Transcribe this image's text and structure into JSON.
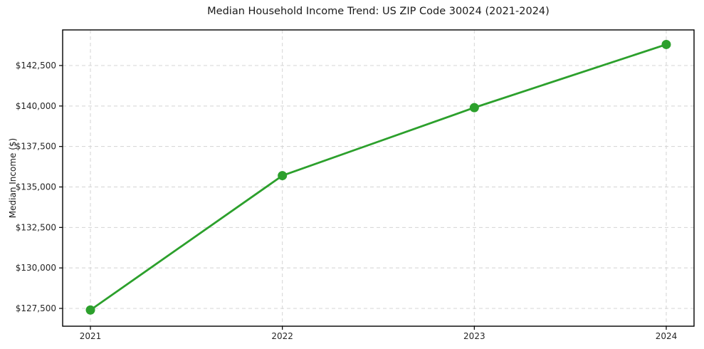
{
  "chart_data": {
    "type": "line",
    "title": "Median Household Income Trend: US ZIP Code 30024 (2021-2024)",
    "xlabel": "",
    "ylabel": "Median Income ($)",
    "x": [
      2021,
      2022,
      2023,
      2024
    ],
    "xtick_labels": [
      "2021",
      "2022",
      "2023",
      "2024"
    ],
    "series": [
      {
        "name": "Median Household Income",
        "values": [
          127400,
          135700,
          139900,
          143800
        ]
      }
    ],
    "ylim": [
      126400,
      144700
    ],
    "yticks": [
      127500,
      130000,
      132500,
      135000,
      137500,
      140000,
      142500
    ],
    "ytick_labels": [
      "$127,500",
      "$130,000",
      "$132,500",
      "$135,000",
      "$137,500",
      "$140,000",
      "$142,500"
    ],
    "grid": true,
    "grid_style": "dashed",
    "legend_position": "none",
    "colors": {
      "line": "#2ca02c",
      "marker": "#2ca02c",
      "grid": "#d4d4d4",
      "spine": "#000000",
      "tick_label": "#262626",
      "background": "#ffffff"
    }
  }
}
